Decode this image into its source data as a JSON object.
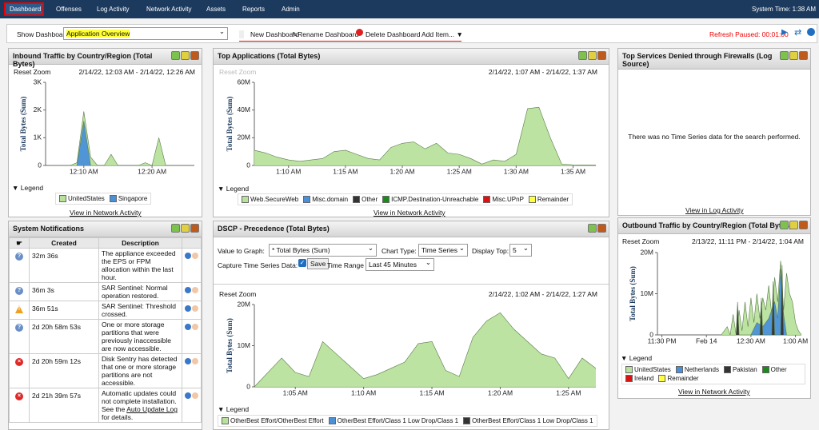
{
  "nav": {
    "tabs": [
      "Dashboard",
      "Offenses",
      "Log Activity",
      "Network Activity",
      "Assets",
      "Reports",
      "Admin"
    ],
    "system_time": "System Time: 1:38 AM"
  },
  "toolbar": {
    "show_label": "Show Dashboard:",
    "selected": "Application Overview",
    "buttons": [
      "New Dashboard",
      "Rename Dashboard",
      "Delete Dashboard",
      "Add Item..."
    ],
    "refresh": "Refresh Paused: 00:01:00"
  },
  "widgets": {
    "inbound": {
      "title": "Inbound Traffic by Country/Region (Total Bytes)",
      "reset_zoom": "Reset Zoom",
      "range": "2/14/22, 12:03 AM - 2/14/22, 12:26 AM",
      "legend_title": "Legend",
      "link": "View in Network Activity",
      "chart": {
        "type": "area",
        "y_label": "Total Bytes (Sum)",
        "xlim": [
          4.4,
          26.2
        ],
        "ylim": [
          0,
          3000
        ],
        "xticks": [
          {
            "value": 10,
            "label": "12:10 AM"
          },
          {
            "value": 20,
            "label": "12:20 AM"
          }
        ],
        "yticks": [
          0,
          {
            "value": 1000,
            "label": "1K"
          },
          {
            "value": 2000,
            "label": "2K"
          },
          {
            "value": 3000,
            "label": "3K"
          }
        ],
        "series": [
          {
            "name": "UnitedStates",
            "color": "#b8e29c",
            "x": [
              5,
              6,
              7,
              8,
              9,
              10,
              11,
              12,
              13,
              14,
              15,
              16,
              17,
              18,
              19,
              20,
              21,
              22,
              23,
              24,
              25,
              26
            ],
            "values": [
              0,
              0,
              0,
              0,
              100,
              1950,
              300,
              0,
              0,
              400,
              0,
              0,
              0,
              0,
              100,
              0,
              1000,
              0,
              0,
              0,
              0,
              0
            ]
          },
          {
            "name": "Singapore",
            "color": "#4a90d9",
            "x": [
              9,
              10,
              11
            ],
            "values": [
              0,
              1600,
              0
            ]
          }
        ]
      }
    },
    "apps": {
      "title": "Top Applications (Total Bytes)",
      "reset_zoom": "Reset Zoom",
      "range": "2/14/22, 1:07 AM - 2/14/22, 1:37 AM",
      "legend_title": "Legend",
      "link": "View in Network Activity",
      "chart": {
        "type": "area",
        "y_label": "Total Bytes (Sum)",
        "xlim": [
          67,
          97
        ],
        "ylim": [
          0,
          60000000
        ],
        "xticks": [
          {
            "value": 70,
            "label": "1:10 AM"
          },
          {
            "value": 75,
            "label": "1:15 AM"
          },
          {
            "value": 80,
            "label": "1:20 AM"
          },
          {
            "value": 85,
            "label": "1:25 AM"
          },
          {
            "value": 90,
            "label": "1:30 AM"
          },
          {
            "value": 95,
            "label": "1:35 AM"
          }
        ],
        "yticks": [
          0,
          {
            "value": 20000000,
            "label": "20M"
          },
          {
            "value": 40000000,
            "label": "40M"
          },
          {
            "value": 60000000,
            "label": "60M"
          }
        ],
        "series": [
          {
            "name": "Web.SecureWeb",
            "color": "#b8e29c",
            "x": [
              67,
              68,
              69,
              70,
              71,
              72,
              73,
              74,
              75,
              76,
              77,
              78,
              79,
              80,
              81,
              82,
              83,
              84,
              85,
              86,
              87,
              88,
              89,
              90,
              91,
              92,
              93,
              94,
              95,
              96,
              97
            ],
            "values": [
              11000000,
              9000000,
              6000000,
              4000000,
              3000000,
              4000000,
              5000000,
              10000000,
              11000000,
              8000000,
              5000000,
              4000000,
              13000000,
              16000000,
              17000000,
              12000000,
              16000000,
              9000000,
              8000000,
              5000000,
              1000000,
              4000000,
              3000000,
              8000000,
              41000000,
              42000000,
              20000000,
              1000000,
              500000,
              300000,
              300000
            ]
          },
          {
            "name": "Misc.domain",
            "color": "#4a90d9"
          },
          {
            "name": "Other",
            "color": "#333333"
          },
          {
            "name": "ICMP.Destination-Unreachable",
            "color": "#1a8a1a"
          },
          {
            "name": "Misc.UPnP",
            "color": "#e01010"
          },
          {
            "name": "Remainder",
            "color": "#ffff44"
          }
        ]
      }
    },
    "denied": {
      "title": "Top Services Denied through Firewalls (Log Source)",
      "message": "There was no Time Series data for the search performed.",
      "link": "View in Log Activity"
    },
    "notifications": {
      "title": "System Notifications",
      "headers": [
        "Created",
        "Description"
      ],
      "rows": [
        {
          "kind": "info",
          "created": "32m 36s",
          "description": "The appliance exceeded the EPS or FPM allocation within the last hour."
        },
        {
          "kind": "info",
          "created": "36m 3s",
          "description": "SAR Sentinel: Normal operation restored."
        },
        {
          "kind": "warning",
          "created": "36m 51s",
          "description": "SAR Sentinel: Threshold crossed."
        },
        {
          "kind": "info",
          "created": "2d 20h 58m 53s",
          "description": "One or more storage partitions that were previously inaccessible are now accessible."
        },
        {
          "kind": "error",
          "created": "2d 20h 59m 12s",
          "description": "Disk Sentry has detected that one or more storage partitions are not accessible."
        },
        {
          "kind": "error",
          "created": "2d 21h 39m 57s",
          "description": "Automatic updates could not complete installation. See the ",
          "link": "Auto Update Log",
          "after": " for details."
        }
      ]
    },
    "dscp": {
      "title": "DSCP - Precedence (Total Bytes)",
      "value_label": "Value to Graph:",
      "value": "* Total Bytes (Sum)",
      "chart_type_label": "Chart Type:",
      "chart_type": "Time Series",
      "display_top_label": "Display Top:",
      "display_top": "5",
      "capture_label": "Capture Time Series Data:",
      "save": "Save",
      "time_range_label": "Time Range",
      "time_range": "Last 45 Minutes",
      "reset_zoom": "Reset Zoom",
      "range": "2/14/22, 1:02 AM - 2/14/22, 1:27 AM",
      "legend_title": "Legend",
      "chart": {
        "type": "area",
        "y_label": "Total Bytes (Sum)",
        "xlim": [
          62,
          87
        ],
        "ylim": [
          0,
          20000000
        ],
        "xticks": [
          {
            "value": 65,
            "label": "1:05 AM"
          },
          {
            "value": 70,
            "label": "1:10 AM"
          },
          {
            "value": 75,
            "label": "1:15 AM"
          },
          {
            "value": 80,
            "label": "1:20 AM"
          },
          {
            "value": 85,
            "label": "1:25 AM"
          }
        ],
        "yticks": [
          0,
          {
            "value": 10000000,
            "label": "10M"
          },
          {
            "value": 20000000,
            "label": "20M"
          }
        ],
        "series": [
          {
            "name": "OtherBest Effort/OtherBest Effort",
            "color": "#b8e29c",
            "x": [
              62,
              63,
              64,
              65,
              66,
              67,
              68,
              69,
              70,
              71,
              72,
              73,
              74,
              75,
              76,
              77,
              78,
              79,
              80,
              81,
              82,
              83,
              84,
              85,
              86,
              87
            ],
            "values": [
              0,
              3500000,
              7000000,
              3500000,
              2500000,
              11000000,
              8000000,
              5000000,
              2000000,
              3000000,
              4500000,
              6000000,
              10500000,
              11000000,
              4000000,
              2500000,
              12000000,
              16000000,
              18000000,
              14000000,
              11000000,
              8000000,
              7000000,
              2000000,
              7000000,
              4500000
            ]
          },
          {
            "name": "OtherBest Effort/Class 1 Low Drop/Class 1",
            "color": "#4a90d9"
          },
          {
            "name": "OtherBest Effort/Class 1 Low Drop/Class 1",
            "color": "#333333"
          }
        ]
      }
    },
    "outbound": {
      "title": "Outbound Traffic by Country/Region (Total Bytes)",
      "reset_zoom": "Reset Zoom",
      "range": "2/13/22, 11:11 PM - 2/14/22, 1:04 AM",
      "legend_title": "Legend",
      "link": "View in Network Activity",
      "chart": {
        "type": "area",
        "y_label": "Total Bytes (Sum)",
        "xlim": [
          -33,
          64
        ],
        "ylim": [
          0,
          20000000
        ],
        "xticks": [
          {
            "value": -30,
            "label": "11:30 PM"
          },
          {
            "value": 0,
            "label": "Feb 14"
          },
          {
            "value": 30,
            "label": "12:30 AM"
          },
          {
            "value": 60,
            "label": "1:00 AM"
          }
        ],
        "yticks": [
          0,
          {
            "value": 10000000,
            "label": "10M"
          },
          {
            "value": 20000000,
            "label": "20M"
          }
        ],
        "series": [
          {
            "name": "UnitedStates",
            "color": "#b8e29c",
            "x": [
              10,
              14,
              16,
              18,
              20,
              22,
              24,
              26,
              28,
              30,
              32,
              34,
              36,
              38,
              40,
              42,
              44,
              46,
              48,
              50,
              52,
              54,
              56,
              58,
              60,
              62,
              64
            ],
            "values": [
              0,
              2000000,
              0,
              5000000,
              0,
              6000000,
              1000000,
              8000000,
              2000000,
              9000000,
              3000000,
              10000000,
              4000000,
              9000000,
              6000000,
              12000000,
              5000000,
              14000000,
              8000000,
              18000000,
              6000000,
              15000000,
              10000000,
              8000000,
              3000000,
              1000000,
              0
            ]
          },
          {
            "name": "Netherlands",
            "color": "#4a90d9",
            "x": [
              30,
              34,
              38,
              42,
              44,
              46,
              48,
              50,
              52,
              54
            ],
            "values": [
              0,
              3000000,
              2000000,
              4000000,
              6000000,
              8000000,
              4000000,
              16000000,
              5000000,
              0
            ]
          },
          {
            "name": "Pakistan",
            "color": "#333333",
            "x": [
              20,
              21,
              22,
              36,
              37,
              38,
              44,
              45,
              46,
              50,
              51,
              52
            ],
            "values": [
              0,
              8000000,
              0,
              0,
              9000000,
              0,
              0,
              13000000,
              0,
              0,
              17000000,
              0
            ]
          },
          {
            "name": "Other",
            "color": "#1a8a1a"
          },
          {
            "name": "Ireland",
            "color": "#e01010"
          },
          {
            "name": "Remainder",
            "color": "#ffff44"
          }
        ]
      }
    }
  }
}
